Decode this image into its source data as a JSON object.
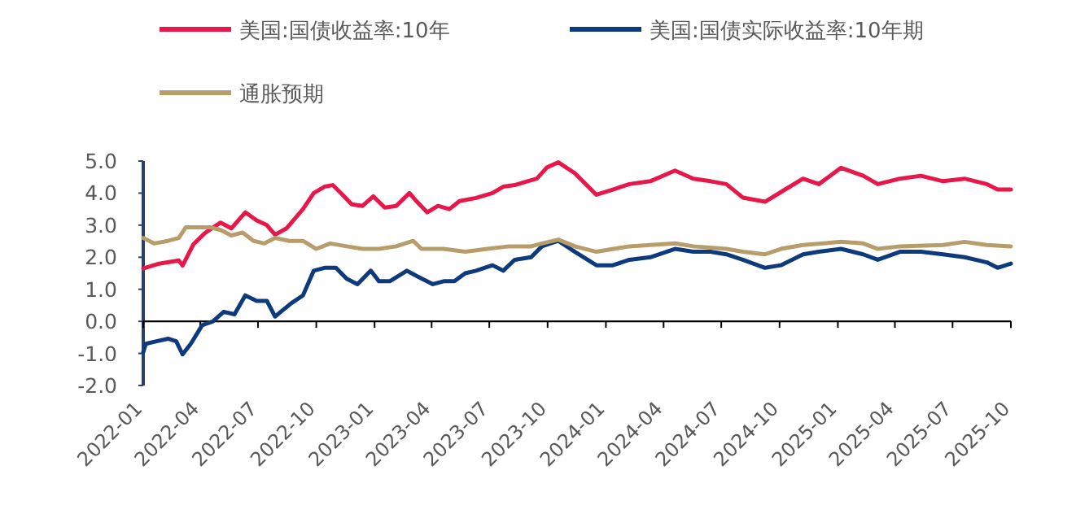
{
  "chart_data": {
    "type": "line",
    "legend": "top",
    "xlim": [
      "2022-01",
      "2025-10"
    ],
    "xticks": [
      "2022-01",
      "2022-04",
      "2022-07",
      "2022-10",
      "2023-01",
      "2023-04",
      "2023-07",
      "2023-10",
      "2024-01",
      "2024-04",
      "2024-07",
      "2024-10",
      "2025-01",
      "2025-04",
      "2025-07",
      "2025-10"
    ],
    "ylim": [
      -2,
      5
    ],
    "yticks": [
      {
        "value": 5,
        "label": "5.0"
      },
      {
        "value": 4,
        "label": "4.0"
      },
      {
        "value": 3,
        "label": "3.0"
      },
      {
        "value": 2,
        "label": "2.0"
      },
      {
        "value": 1,
        "label": "1.0"
      },
      {
        "value": 0,
        "label": "0.0"
      },
      {
        "value": -1,
        "label": "-1.0"
      },
      {
        "value": -2,
        "label": "-2.0"
      }
    ],
    "series": [
      {
        "name": "美国:国债收益率:10年",
        "color": "#e8174a",
        "x": [
          "2022-01-01",
          "2022-01-26",
          "2022-02-26",
          "2022-03-04",
          "2022-03-21",
          "2022-04-08",
          "2022-05-03",
          "2022-05-20",
          "2022-06-11",
          "2022-06-29",
          "2022-07-15",
          "2022-07-28",
          "2022-08-15",
          "2022-09-10",
          "2022-09-27",
          "2022-10-14",
          "2022-10-27",
          "2022-11-09",
          "2022-11-26",
          "2022-12-13",
          "2022-12-30",
          "2023-01-17",
          "2023-02-04",
          "2023-02-25",
          "2023-03-08",
          "2023-03-25",
          "2023-04-11",
          "2023-04-29",
          "2023-05-15",
          "2023-06-10",
          "2023-07-06",
          "2023-07-23",
          "2023-08-10",
          "2023-08-27",
          "2023-09-14",
          "2023-09-30",
          "2023-10-18",
          "2023-11-13",
          "2023-12-17",
          "2024-01-12",
          "2024-02-07",
          "2024-03-11",
          "2024-04-19",
          "2024-05-18",
          "2024-06-14",
          "2024-07-09",
          "2024-08-04",
          "2024-09-08",
          "2024-10-03",
          "2024-11-07",
          "2024-12-02",
          "2025-01-06",
          "2025-02-10",
          "2025-03-05",
          "2025-04-09",
          "2025-05-12",
          "2025-06-16",
          "2025-07-20",
          "2025-08-24",
          "2025-09-10",
          "2025-10-01"
        ],
        "values": [
          1.65,
          1.8,
          1.9,
          1.74,
          2.4,
          2.75,
          3.08,
          2.9,
          3.4,
          3.15,
          3.0,
          2.7,
          2.9,
          3.5,
          4.0,
          4.2,
          4.25,
          4.0,
          3.65,
          3.6,
          3.9,
          3.55,
          3.6,
          4.0,
          3.75,
          3.4,
          3.6,
          3.5,
          3.75,
          3.85,
          4.0,
          4.2,
          4.25,
          4.35,
          4.45,
          4.8,
          4.96,
          4.62,
          3.95,
          4.11,
          4.28,
          4.37,
          4.7,
          4.45,
          4.37,
          4.28,
          3.86,
          3.73,
          4.03,
          4.45,
          4.28,
          4.79,
          4.54,
          4.28,
          4.45,
          4.54,
          4.37,
          4.45,
          4.28,
          4.11,
          4.11
        ]
      },
      {
        "name": "美国:国债实际收益率:10年期",
        "color": "#0c3a7d",
        "x": [
          "2022-01-01",
          "2022-01-05",
          "2022-01-22",
          "2022-02-09",
          "2022-02-22",
          "2022-03-04",
          "2022-03-17",
          "2022-04-04",
          "2022-04-21",
          "2022-05-08",
          "2022-05-25",
          "2022-06-11",
          "2022-06-29",
          "2022-07-15",
          "2022-07-28",
          "2022-08-06",
          "2022-08-23",
          "2022-09-10",
          "2022-09-27",
          "2022-10-14",
          "2022-11-01",
          "2022-11-18",
          "2022-12-05",
          "2022-12-26",
          "2023-01-08",
          "2023-01-25",
          "2023-02-21",
          "2023-03-08",
          "2023-04-03",
          "2023-04-20",
          "2023-05-07",
          "2023-05-24",
          "2023-06-10",
          "2023-07-06",
          "2023-07-23",
          "2023-08-10",
          "2023-09-05",
          "2023-09-22",
          "2023-10-05",
          "2023-10-18",
          "2023-11-13",
          "2023-12-17",
          "2024-01-12",
          "2024-02-07",
          "2024-03-11",
          "2024-04-19",
          "2024-05-18",
          "2024-06-14",
          "2024-07-09",
          "2024-08-04",
          "2024-09-08",
          "2024-10-03",
          "2024-11-07",
          "2024-12-02",
          "2025-01-06",
          "2025-02-10",
          "2025-03-05",
          "2025-04-09",
          "2025-05-12",
          "2025-06-16",
          "2025-07-20",
          "2025-08-24",
          "2025-09-10",
          "2025-10-01"
        ],
        "values": [
          -0.96,
          -0.7,
          -0.62,
          -0.54,
          -0.62,
          -1.03,
          -0.7,
          -0.12,
          0.0,
          0.3,
          0.22,
          0.81,
          0.64,
          0.64,
          0.15,
          0.3,
          0.57,
          0.81,
          1.58,
          1.67,
          1.67,
          1.33,
          1.16,
          1.58,
          1.25,
          1.25,
          1.58,
          1.42,
          1.16,
          1.25,
          1.25,
          1.5,
          1.58,
          1.75,
          1.58,
          1.92,
          2.0,
          2.34,
          2.43,
          2.51,
          2.17,
          1.75,
          1.75,
          1.92,
          2.0,
          2.26,
          2.17,
          2.17,
          2.09,
          1.92,
          1.67,
          1.75,
          2.09,
          2.17,
          2.26,
          2.09,
          1.92,
          2.17,
          2.17,
          2.09,
          2.0,
          1.84,
          1.67,
          1.8
        ]
      },
      {
        "name": "通胀预期",
        "color": "#b79d6a",
        "x": [
          "2022-01-01",
          "2022-01-18",
          "2022-02-09",
          "2022-02-26",
          "2022-03-09",
          "2022-03-30",
          "2022-04-17",
          "2022-05-03",
          "2022-05-20",
          "2022-06-07",
          "2022-06-24",
          "2022-07-11",
          "2022-07-28",
          "2022-08-19",
          "2022-09-10",
          "2022-10-01",
          "2022-10-23",
          "2022-11-18",
          "2022-12-13",
          "2023-01-08",
          "2023-02-04",
          "2023-03-03",
          "2023-03-16",
          "2023-04-20",
          "2023-05-24",
          "2023-06-28",
          "2023-08-01",
          "2023-09-05",
          "2023-09-22",
          "2023-10-18",
          "2023-11-13",
          "2023-12-17",
          "2024-02-07",
          "2024-03-11",
          "2024-04-19",
          "2024-05-18",
          "2024-07-09",
          "2024-08-04",
          "2024-09-08",
          "2024-10-03",
          "2024-11-07",
          "2025-01-06",
          "2025-02-10",
          "2025-03-05",
          "2025-04-09",
          "2025-06-16",
          "2025-07-20",
          "2025-08-24",
          "2025-10-01"
        ],
        "values": [
          2.6,
          2.43,
          2.51,
          2.6,
          2.93,
          2.93,
          2.93,
          2.85,
          2.68,
          2.77,
          2.51,
          2.43,
          2.6,
          2.51,
          2.51,
          2.26,
          2.43,
          2.34,
          2.26,
          2.26,
          2.34,
          2.51,
          2.26,
          2.26,
          2.17,
          2.26,
          2.34,
          2.34,
          2.43,
          2.55,
          2.34,
          2.17,
          2.34,
          2.38,
          2.43,
          2.34,
          2.26,
          2.17,
          2.09,
          2.26,
          2.38,
          2.48,
          2.43,
          2.26,
          2.34,
          2.38,
          2.48,
          2.38,
          2.34
        ]
      }
    ]
  }
}
